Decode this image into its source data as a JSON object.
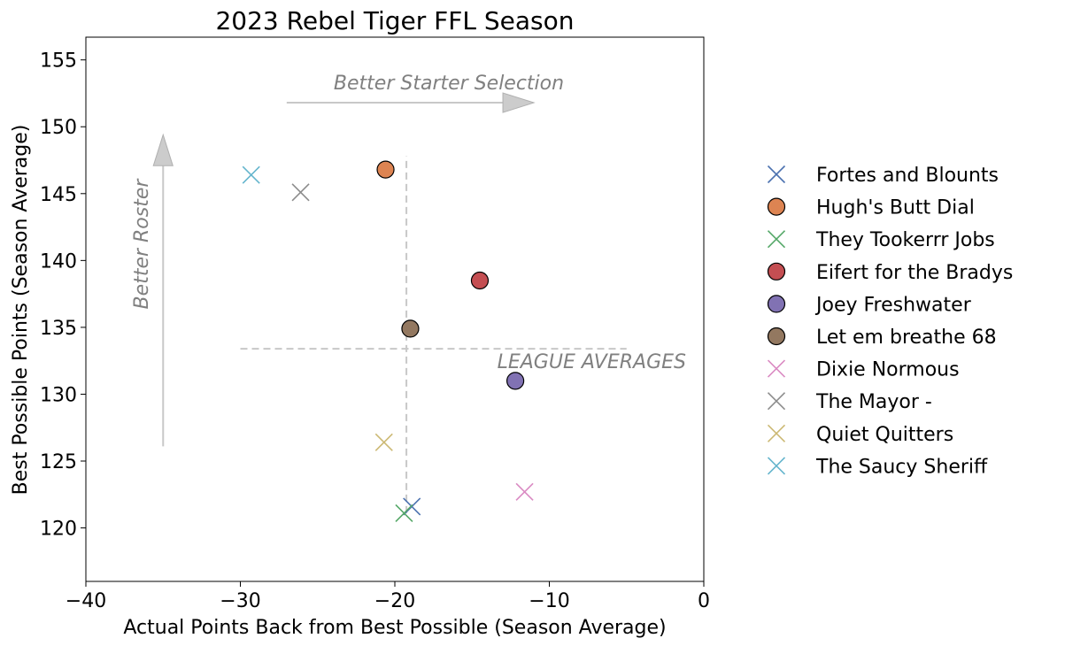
{
  "chart_data": {
    "type": "scatter",
    "title": "2023 Rebel Tiger FFL Season",
    "xlabel": "Actual Points Back from Best Possible (Season Average)",
    "ylabel": "Best Possible Points (Season Average)",
    "xlim": [
      -40,
      0
    ],
    "ylim": [
      116,
      156.7
    ],
    "xticks": [
      -40,
      -30,
      -20,
      -10,
      0
    ],
    "xtick_labels": [
      "−40",
      "−30",
      "−20",
      "−10",
      "0"
    ],
    "yticks": [
      120,
      125,
      130,
      135,
      140,
      145,
      150,
      155
    ],
    "ytick_labels": [
      "120",
      "125",
      "130",
      "135",
      "140",
      "145",
      "150",
      "155"
    ],
    "grid": false,
    "legend_position": "right",
    "series": [
      {
        "name": "Fortes and Blounts",
        "marker": "x",
        "color": "#4c72b0",
        "x": -18.9,
        "y": 121.6
      },
      {
        "name": "Hugh's  Butt Dial",
        "marker": "o",
        "color": "#dd8452",
        "x": -20.6,
        "y": 146.8
      },
      {
        "name": "They Tookerrr Jobs",
        "marker": "x",
        "color": "#55a868",
        "x": -19.4,
        "y": 121.1
      },
      {
        "name": "Eifert  for the Bradys",
        "marker": "o",
        "color": "#c44e52",
        "x": -14.5,
        "y": 138.5
      },
      {
        "name": "Joey Freshwater",
        "marker": "o",
        "color": "#8172b3",
        "x": -12.2,
        "y": 131.0
      },
      {
        "name": "Let em breathe 68",
        "marker": "o",
        "color": "#937860",
        "x": -19.0,
        "y": 134.9
      },
      {
        "name": "Dixie Normous",
        "marker": "x",
        "color": "#da8bc3",
        "x": -11.6,
        "y": 122.7
      },
      {
        "name": "The Mayor -",
        "marker": "x",
        "color": "#8c8c8c",
        "x": -26.1,
        "y": 145.1
      },
      {
        "name": "Quiet Quitters",
        "marker": "x",
        "color": "#ccb974",
        "x": -20.7,
        "y": 126.4
      },
      {
        "name": "The Saucy Sheriff",
        "marker": "x",
        "color": "#64b5cd",
        "x": -29.3,
        "y": 146.4
      }
    ],
    "league_averages": {
      "label": "LEAGUE AVERAGES",
      "x": -19.25,
      "y": 133.4,
      "x_span": [
        -30,
        -5
      ],
      "y_span": [
        121.1,
        147.8
      ]
    },
    "annotations": [
      {
        "text": "Better Starter Selection",
        "arrow_from": [
          -27,
          151.8
        ],
        "arrow_to": [
          -11,
          151.8
        ]
      },
      {
        "text": "Better Roster",
        "arrow_from": [
          -35,
          126.1
        ],
        "arrow_to": [
          -35,
          149.4
        ]
      }
    ]
  }
}
